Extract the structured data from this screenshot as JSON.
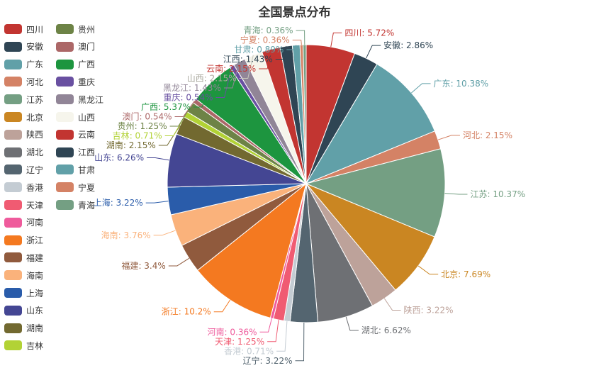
{
  "chart_data": {
    "type": "pie",
    "title": "全国景点分布",
    "legend_position": "left",
    "slices": [
      {
        "name": "四川",
        "value": 5.72,
        "color": "#c23531"
      },
      {
        "name": "安徽",
        "value": 2.86,
        "color": "#2f4554"
      },
      {
        "name": "广东",
        "value": 10.38,
        "color": "#61a0a8"
      },
      {
        "name": "河北",
        "value": 2.15,
        "color": "#d48265"
      },
      {
        "name": "江苏",
        "value": 10.37,
        "color": "#749f83"
      },
      {
        "name": "北京",
        "value": 7.69,
        "color": "#ca8622"
      },
      {
        "name": "陕西",
        "value": 3.22,
        "color": "#bda29a"
      },
      {
        "name": "湖北",
        "value": 6.62,
        "color": "#6e7074"
      },
      {
        "name": "辽宁",
        "value": 3.22,
        "color": "#546570"
      },
      {
        "name": "香港",
        "value": 0.71,
        "color": "#c4ccd3"
      },
      {
        "name": "天津",
        "value": 1.25,
        "color": "#f05b72"
      },
      {
        "name": "河南",
        "value": 0.36,
        "color": "#ef5b9c"
      },
      {
        "name": "浙江",
        "value": 10.2,
        "color": "#f47920"
      },
      {
        "name": "福建",
        "value": 3.4,
        "color": "#905a3d"
      },
      {
        "name": "海南",
        "value": 3.76,
        "color": "#fab27b"
      },
      {
        "name": "上海",
        "value": 3.22,
        "color": "#2a5caa"
      },
      {
        "name": "山东",
        "value": 6.26,
        "color": "#444693"
      },
      {
        "name": "湖南",
        "value": 2.15,
        "color": "#726930"
      },
      {
        "name": "吉林",
        "value": 0.71,
        "color": "#b2d235"
      },
      {
        "name": "贵州",
        "value": 1.25,
        "color": "#6d8346"
      },
      {
        "name": "澳门",
        "value": 0.54,
        "color": "#ac6767"
      },
      {
        "name": "广西",
        "value": 5.37,
        "color": "#1d953f"
      },
      {
        "name": "重庆",
        "value": 0.54,
        "color": "#6950a1"
      },
      {
        "name": "黑龙江",
        "value": 1.43,
        "color": "#918597"
      },
      {
        "name": "山西",
        "value": 2.15,
        "color": "#f6f5ec"
      },
      {
        "name": "云南",
        "value": 2.15,
        "color": "#c23531"
      },
      {
        "name": "江西",
        "value": 1.43,
        "color": "#2f4554"
      },
      {
        "name": "甘肃",
        "value": 0.89,
        "color": "#61a0a8"
      },
      {
        "name": "宁夏",
        "value": 0.36,
        "color": "#d48265"
      },
      {
        "name": "青海",
        "value": 0.36,
        "color": "#749f83"
      }
    ]
  }
}
